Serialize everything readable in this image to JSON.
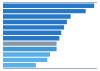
{
  "chart_data": {
    "type": "bar",
    "orientation": "horizontal",
    "categories": [
      null,
      null,
      null,
      null,
      null,
      null,
      null,
      null,
      null,
      null,
      null,
      null
    ],
    "values": [
      97,
      88,
      72,
      68,
      65,
      62,
      60,
      57,
      57,
      50,
      47,
      35
    ],
    "colors": [
      "#2878c8",
      "#2878c8",
      "#2878c8",
      "#2878c8",
      "#2878c8",
      "#2878c8",
      "#2878c8",
      "#8898a8",
      "#4499d8",
      "#5ab0e8",
      "#5ab0e8",
      "#5ab0e8"
    ],
    "xlim": [
      0,
      100
    ],
    "grid": false,
    "tick_labels": false
  }
}
